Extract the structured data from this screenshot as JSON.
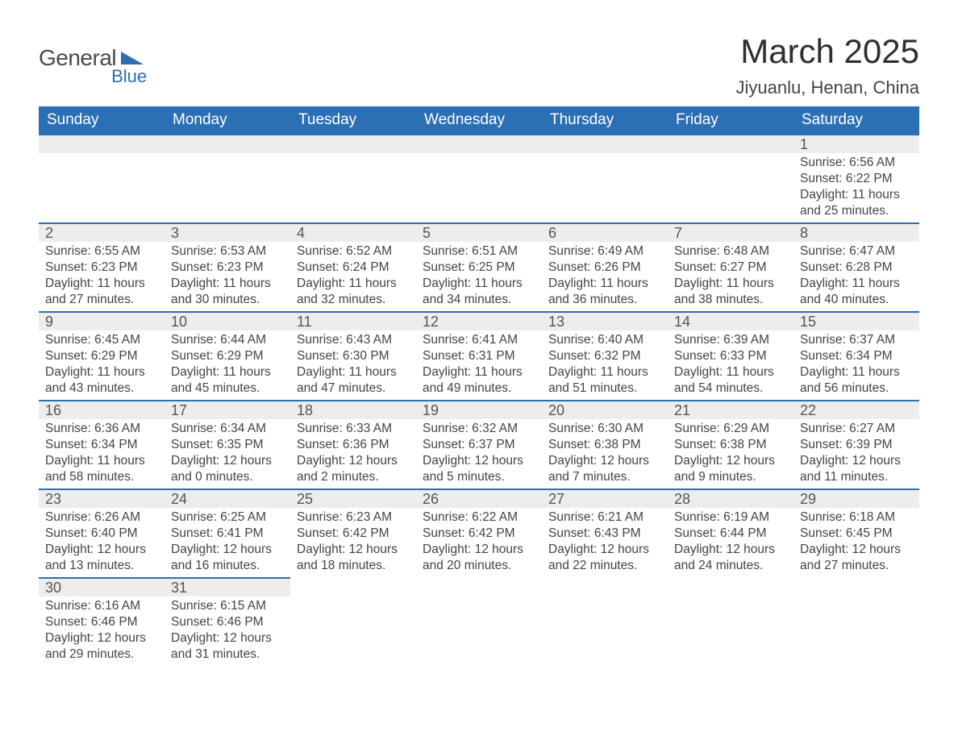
{
  "logo": {
    "general": "General",
    "blue": "Blue"
  },
  "title": "March 2025",
  "subtitle": "Jiyuanlu, Henan, China",
  "colors": {
    "header_bg": "#2b6fb5",
    "header_fg": "#ffffff",
    "daynum_bg": "#ededed",
    "row_border": "#2b6fb5",
    "text": "#444444"
  },
  "daysOfWeek": [
    "Sunday",
    "Monday",
    "Tuesday",
    "Wednesday",
    "Thursday",
    "Friday",
    "Saturday"
  ],
  "labels": {
    "sunrise": "Sunrise:",
    "sunset": "Sunset:",
    "daylight": "Daylight:"
  },
  "weeks": [
    [
      null,
      null,
      null,
      null,
      null,
      null,
      {
        "n": "1",
        "sunrise": "6:56 AM",
        "sunset": "6:22 PM",
        "daylight": "11 hours and 25 minutes."
      }
    ],
    [
      {
        "n": "2",
        "sunrise": "6:55 AM",
        "sunset": "6:23 PM",
        "daylight": "11 hours and 27 minutes."
      },
      {
        "n": "3",
        "sunrise": "6:53 AM",
        "sunset": "6:23 PM",
        "daylight": "11 hours and 30 minutes."
      },
      {
        "n": "4",
        "sunrise": "6:52 AM",
        "sunset": "6:24 PM",
        "daylight": "11 hours and 32 minutes."
      },
      {
        "n": "5",
        "sunrise": "6:51 AM",
        "sunset": "6:25 PM",
        "daylight": "11 hours and 34 minutes."
      },
      {
        "n": "6",
        "sunrise": "6:49 AM",
        "sunset": "6:26 PM",
        "daylight": "11 hours and 36 minutes."
      },
      {
        "n": "7",
        "sunrise": "6:48 AM",
        "sunset": "6:27 PM",
        "daylight": "11 hours and 38 minutes."
      },
      {
        "n": "8",
        "sunrise": "6:47 AM",
        "sunset": "6:28 PM",
        "daylight": "11 hours and 40 minutes."
      }
    ],
    [
      {
        "n": "9",
        "sunrise": "6:45 AM",
        "sunset": "6:29 PM",
        "daylight": "11 hours and 43 minutes."
      },
      {
        "n": "10",
        "sunrise": "6:44 AM",
        "sunset": "6:29 PM",
        "daylight": "11 hours and 45 minutes."
      },
      {
        "n": "11",
        "sunrise": "6:43 AM",
        "sunset": "6:30 PM",
        "daylight": "11 hours and 47 minutes."
      },
      {
        "n": "12",
        "sunrise": "6:41 AM",
        "sunset": "6:31 PM",
        "daylight": "11 hours and 49 minutes."
      },
      {
        "n": "13",
        "sunrise": "6:40 AM",
        "sunset": "6:32 PM",
        "daylight": "11 hours and 51 minutes."
      },
      {
        "n": "14",
        "sunrise": "6:39 AM",
        "sunset": "6:33 PM",
        "daylight": "11 hours and 54 minutes."
      },
      {
        "n": "15",
        "sunrise": "6:37 AM",
        "sunset": "6:34 PM",
        "daylight": "11 hours and 56 minutes."
      }
    ],
    [
      {
        "n": "16",
        "sunrise": "6:36 AM",
        "sunset": "6:34 PM",
        "daylight": "11 hours and 58 minutes."
      },
      {
        "n": "17",
        "sunrise": "6:34 AM",
        "sunset": "6:35 PM",
        "daylight": "12 hours and 0 minutes."
      },
      {
        "n": "18",
        "sunrise": "6:33 AM",
        "sunset": "6:36 PM",
        "daylight": "12 hours and 2 minutes."
      },
      {
        "n": "19",
        "sunrise": "6:32 AM",
        "sunset": "6:37 PM",
        "daylight": "12 hours and 5 minutes."
      },
      {
        "n": "20",
        "sunrise": "6:30 AM",
        "sunset": "6:38 PM",
        "daylight": "12 hours and 7 minutes."
      },
      {
        "n": "21",
        "sunrise": "6:29 AM",
        "sunset": "6:38 PM",
        "daylight": "12 hours and 9 minutes."
      },
      {
        "n": "22",
        "sunrise": "6:27 AM",
        "sunset": "6:39 PM",
        "daylight": "12 hours and 11 minutes."
      }
    ],
    [
      {
        "n": "23",
        "sunrise": "6:26 AM",
        "sunset": "6:40 PM",
        "daylight": "12 hours and 13 minutes."
      },
      {
        "n": "24",
        "sunrise": "6:25 AM",
        "sunset": "6:41 PM",
        "daylight": "12 hours and 16 minutes."
      },
      {
        "n": "25",
        "sunrise": "6:23 AM",
        "sunset": "6:42 PM",
        "daylight": "12 hours and 18 minutes."
      },
      {
        "n": "26",
        "sunrise": "6:22 AM",
        "sunset": "6:42 PM",
        "daylight": "12 hours and 20 minutes."
      },
      {
        "n": "27",
        "sunrise": "6:21 AM",
        "sunset": "6:43 PM",
        "daylight": "12 hours and 22 minutes."
      },
      {
        "n": "28",
        "sunrise": "6:19 AM",
        "sunset": "6:44 PM",
        "daylight": "12 hours and 24 minutes."
      },
      {
        "n": "29",
        "sunrise": "6:18 AM",
        "sunset": "6:45 PM",
        "daylight": "12 hours and 27 minutes."
      }
    ],
    [
      {
        "n": "30",
        "sunrise": "6:16 AM",
        "sunset": "6:46 PM",
        "daylight": "12 hours and 29 minutes."
      },
      {
        "n": "31",
        "sunrise": "6:15 AM",
        "sunset": "6:46 PM",
        "daylight": "12 hours and 31 minutes."
      },
      null,
      null,
      null,
      null,
      null
    ]
  ]
}
